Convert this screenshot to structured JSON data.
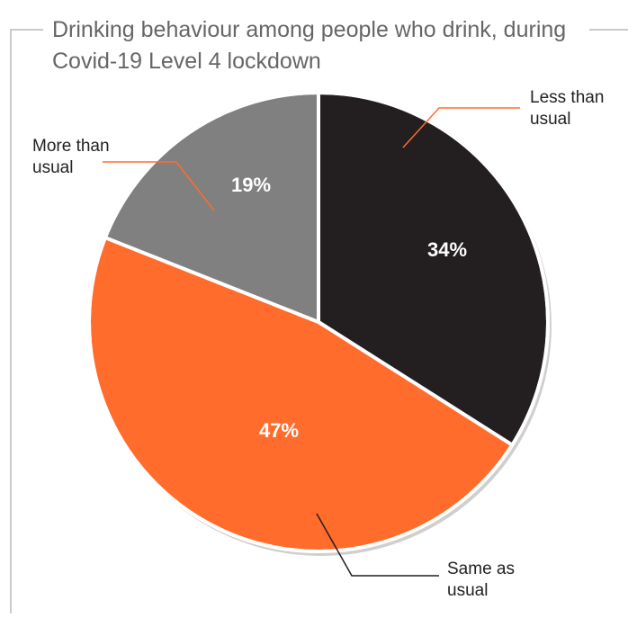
{
  "chart_data": {
    "type": "pie",
    "title_lines": [
      "Drinking behaviour among people who drink, during",
      "Covid-19 Level 4 lockdown"
    ],
    "slices": [
      {
        "name": "Less than usual",
        "label_lines": [
          "Less than",
          "usual"
        ],
        "value": 34,
        "value_label": "34%",
        "color": "#231f20"
      },
      {
        "name": "Same as usual",
        "label_lines": [
          "Same as",
          "usual"
        ],
        "value": 47,
        "value_label": "47%",
        "color": "#ff6c2c"
      },
      {
        "name": "More than usual",
        "label_lines": [
          "More than",
          "usual"
        ],
        "value": 19,
        "value_label": "19%",
        "color": "#808080"
      }
    ],
    "start": "12 o'clock",
    "direction": "clockwise",
    "leader_color": "#ff6c2c",
    "leader_color_dark": "#231f20"
  }
}
